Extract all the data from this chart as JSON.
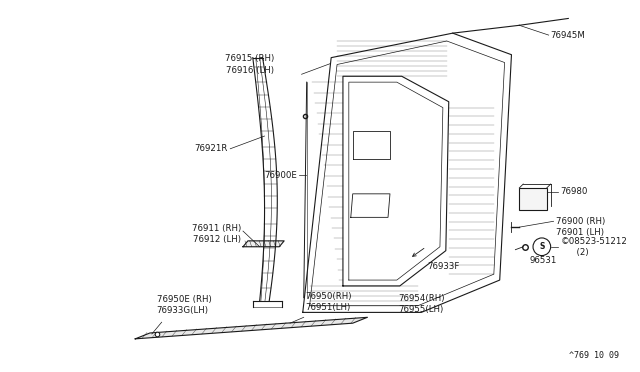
{
  "background_color": "#ffffff",
  "diagram_code": "^769 10 09",
  "line_color": "#1a1a1a",
  "text_color": "#1a1a1a",
  "font_size": 6.2,
  "figsize": [
    6.4,
    3.72
  ],
  "dpi": 100,
  "labels": {
    "76915_16": "76915 (RH)\n76916 (LH)",
    "76945M": "76945M",
    "76921R": "76921R",
    "76900E": "76900E",
    "76911_12": "76911 (RH)\n76912 (LH)",
    "76980": "76980",
    "76900_01": "76900 (RH)\n76901 (LH)",
    "08523": "©08523-51212\n    (2)",
    "96531": "96531",
    "76933F": "76933F",
    "76954_55": "76954(RH)\n76955(LH)",
    "76950E_33G": "76950E (RH)\n76933G(LH)",
    "76950_51": "76950(RH)\n76951(LH)"
  }
}
